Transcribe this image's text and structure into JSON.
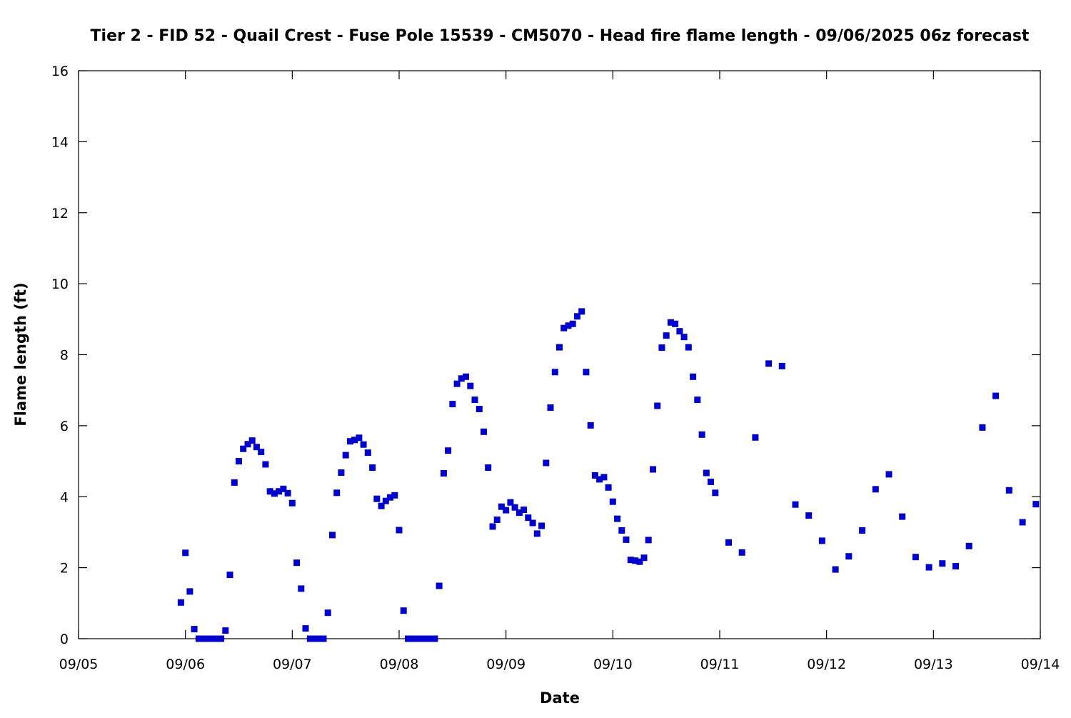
{
  "chart_data": {
    "type": "scatter",
    "title": "Tier 2 - FID 52 - Quail Crest - Fuse Pole 15539 - CM5070 - Head fire flame length - 09/06/2025 06z forecast",
    "xlabel": "Date",
    "ylabel": "Flame length (ft)",
    "x_ticks": [
      "09/05",
      "09/06",
      "09/07",
      "09/08",
      "09/09",
      "09/10",
      "09/11",
      "09/12",
      "09/13",
      "09/14"
    ],
    "y_ticks": [
      "0",
      "2",
      "4",
      "6",
      "8",
      "10",
      "12",
      "14",
      "16"
    ],
    "xlim": [
      "09/05",
      "09/14"
    ],
    "ylim": [
      0,
      16
    ],
    "grid": false,
    "marker": "square",
    "series_color": "#0000cc",
    "series": [
      {
        "x": [
          "09/05 23:00",
          "09/06 00:00",
          "09/06 01:00",
          "09/06 02:00",
          "09/06 03:00",
          "09/06 04:00",
          "09/06 05:00",
          "09/06 06:00",
          "09/06 07:00",
          "09/06 08:00",
          "09/06 09:00",
          "09/06 10:00",
          "09/06 11:00",
          "09/06 12:00",
          "09/06 13:00",
          "09/06 14:00",
          "09/06 15:00",
          "09/06 16:00",
          "09/06 17:00",
          "09/06 18:00",
          "09/06 19:00",
          "09/06 20:00",
          "09/06 21:00",
          "09/06 22:00",
          "09/06 23:00",
          "09/07 00:00",
          "09/07 01:00",
          "09/07 02:00",
          "09/07 03:00",
          "09/07 04:00",
          "09/07 05:00",
          "09/07 06:00",
          "09/07 07:00",
          "09/07 08:00",
          "09/07 09:00",
          "09/07 10:00",
          "09/07 11:00",
          "09/07 12:00",
          "09/07 13:00",
          "09/07 14:00",
          "09/07 15:00",
          "09/07 16:00",
          "09/07 17:00",
          "09/07 18:00",
          "09/07 19:00",
          "09/07 20:00",
          "09/07 21:00",
          "09/07 22:00",
          "09/07 23:00",
          "09/08 00:00",
          "09/08 01:00",
          "09/08 02:00",
          "09/08 03:00",
          "09/08 04:00",
          "09/08 05:00",
          "09/08 06:00",
          "09/08 07:00",
          "09/08 08:00",
          "09/08 09:00",
          "09/08 10:00",
          "09/08 11:00",
          "09/08 12:00",
          "09/08 13:00",
          "09/08 14:00",
          "09/08 15:00",
          "09/08 16:00",
          "09/08 17:00",
          "09/08 18:00",
          "09/08 19:00",
          "09/08 20:00",
          "09/08 21:00",
          "09/08 22:00",
          "09/08 23:00",
          "09/09 00:00",
          "09/09 01:00",
          "09/09 02:00",
          "09/09 03:00",
          "09/09 04:00",
          "09/09 05:00",
          "09/09 06:00",
          "09/09 07:00",
          "09/09 08:00",
          "09/09 09:00",
          "09/09 10:00",
          "09/09 11:00",
          "09/09 12:00",
          "09/09 13:00",
          "09/09 14:00",
          "09/09 15:00",
          "09/09 16:00",
          "09/09 17:00",
          "09/09 18:00",
          "09/09 19:00",
          "09/09 20:00",
          "09/09 21:00",
          "09/09 22:00",
          "09/09 23:00",
          "09/10 00:00",
          "09/10 01:00",
          "09/10 02:00",
          "09/10 03:00",
          "09/10 04:00",
          "09/10 05:00",
          "09/10 06:00",
          "09/10 07:00",
          "09/10 08:00",
          "09/10 09:00",
          "09/10 10:00",
          "09/10 11:00",
          "09/10 12:00",
          "09/10 13:00",
          "09/10 14:00",
          "09/10 15:00",
          "09/10 16:00",
          "09/10 17:00",
          "09/10 18:00",
          "09/10 19:00",
          "09/10 20:00",
          "09/10 21:00",
          "09/10 22:00",
          "09/10 23:00",
          "09/11 02:00",
          "09/11 05:00",
          "09/11 08:00",
          "09/11 11:00",
          "09/11 14:00",
          "09/11 17:00",
          "09/11 20:00",
          "09/11 23:00",
          "09/12 02:00",
          "09/12 05:00",
          "09/12 08:00",
          "09/12 11:00",
          "09/12 14:00",
          "09/12 17:00",
          "09/12 20:00",
          "09/12 23:00",
          "09/13 02:00",
          "09/13 05:00",
          "09/13 08:00",
          "09/13 11:00",
          "09/13 14:00",
          "09/13 17:00",
          "09/13 20:00",
          "09/13 23:00"
        ],
        "y": [
          1.02,
          2.42,
          1.33,
          0.27,
          0,
          0,
          0,
          0,
          0,
          0,
          0.23,
          1.8,
          4.4,
          5.0,
          5.35,
          5.48,
          5.58,
          5.4,
          5.26,
          4.91,
          4.15,
          4.09,
          4.15,
          4.22,
          4.1,
          3.82,
          2.14,
          1.41,
          0.29,
          0,
          0,
          0,
          0,
          0.73,
          2.92,
          4.11,
          4.68,
          5.17,
          5.56,
          5.6,
          5.66,
          5.47,
          5.24,
          4.82,
          3.94,
          3.74,
          3.88,
          3.98,
          4.04,
          3.06,
          0.79,
          0,
          0,
          0,
          0,
          0,
          0,
          0,
          1.49,
          4.66,
          5.3,
          6.61,
          7.18,
          7.33,
          7.38,
          7.12,
          6.73,
          6.47,
          5.83,
          4.82,
          3.16,
          3.35,
          3.72,
          3.62,
          3.84,
          3.7,
          3.55,
          3.63,
          3.41,
          3.26,
          2.96,
          3.18,
          4.95,
          6.51,
          7.51,
          8.21,
          8.75,
          8.82,
          8.87,
          9.08,
          9.22,
          7.51,
          6.01,
          4.6,
          4.49,
          4.55,
          4.26,
          3.86,
          3.38,
          3.05,
          2.79,
          2.22,
          2.2,
          2.17,
          2.28,
          2.78,
          4.77,
          6.56,
          8.2,
          8.54,
          8.91,
          8.87,
          8.66,
          8.5,
          8.21,
          7.38,
          6.73,
          5.75,
          4.67,
          4.42,
          4.11,
          2.71,
          2.43,
          5.67,
          7.75,
          7.68,
          3.78,
          3.47,
          2.76,
          1.95,
          2.32,
          3.05,
          4.21,
          4.63,
          3.44,
          2.3,
          2.01,
          2.12,
          2.04,
          2.61,
          5.95,
          6.84,
          4.18,
          3.28,
          3.79
        ]
      }
    ]
  }
}
